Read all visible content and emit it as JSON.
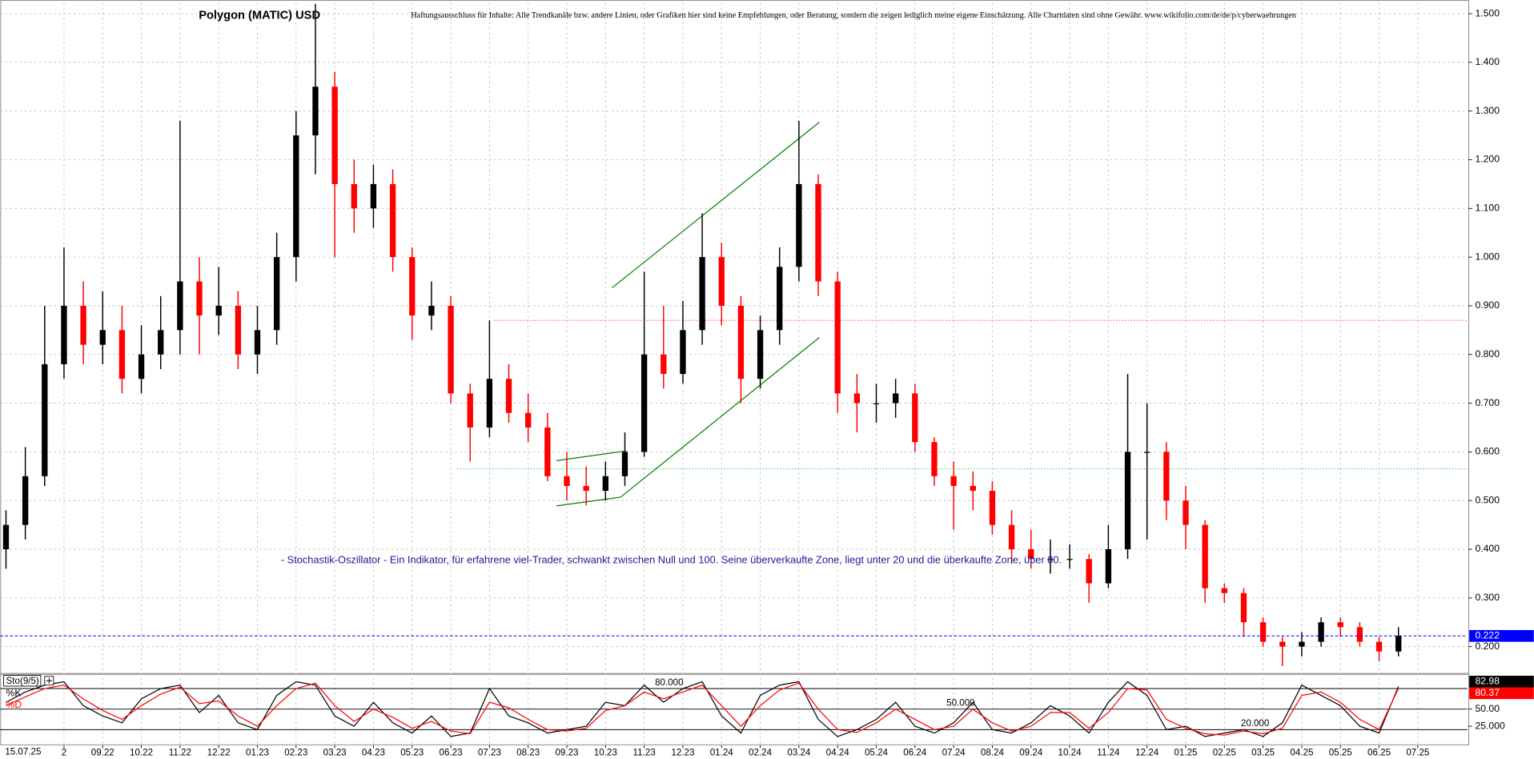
{
  "chart_data": {
    "type": "candlestick",
    "title": "Polygon (MATIC) USD",
    "disclaimer": "Haftungsausschluss für Inhalte: Alle Trendkanäle bzw. andere Linien, oder Grafiken hier sind keine Empfehlungen, oder Beratung, sondern die zeigen lediglich meine eigene Einschätzung. Alle Chartdaten sind ohne Gewähr. www.wikifolio.com/de/de/p/cyberwaehrungen",
    "annotation": "- Stochastik-Oszillator - Ein Indikator, für erfahrene viel-Trader, schwankt zwischen Null und 100. Seine überverkaufte Zone, liegt unter 20 und die überkaufte Zone, über 80.",
    "date_label": "15.07.25",
    "x": [
      -1.5,
      -1,
      -0.5,
      0,
      0.5,
      1,
      1.5,
      2,
      2.5,
      3,
      3.5,
      4,
      4.5,
      5,
      5.5,
      6,
      6.5,
      7,
      7.5,
      8,
      8.5,
      9,
      9.5,
      10,
      10.5,
      11,
      11.5,
      12,
      12.5,
      13,
      13.5,
      14,
      14.5,
      15,
      15.5,
      16,
      16.5,
      17,
      17.5,
      18,
      18.5,
      19,
      19.5,
      20,
      20.5,
      21,
      21.5,
      22,
      22.5,
      23,
      23.5,
      24,
      24.5,
      25,
      25.5,
      26,
      26.5,
      27,
      27.5,
      28,
      28.5,
      29,
      29.5,
      30,
      30.5,
      31,
      31.5,
      32,
      32.5,
      33,
      33.5,
      34,
      34.5
    ],
    "open": [
      0.4,
      0.45,
      0.55,
      0.78,
      0.9,
      0.82,
      0.85,
      0.75,
      0.8,
      0.85,
      0.95,
      0.88,
      0.9,
      0.8,
      0.85,
      1.0,
      1.25,
      1.35,
      1.15,
      1.1,
      1.15,
      1.0,
      0.88,
      0.9,
      0.72,
      0.65,
      0.75,
      0.68,
      0.65,
      0.55,
      0.53,
      0.52,
      0.55,
      0.6,
      0.8,
      0.76,
      0.85,
      1.0,
      0.9,
      0.75,
      0.85,
      0.98,
      1.15,
      0.95,
      0.72,
      0.7,
      0.7,
      0.72,
      0.62,
      0.55,
      0.53,
      0.52,
      0.45,
      0.4,
      0.38,
      0.38,
      0.38,
      0.33,
      0.4,
      0.6,
      0.6,
      0.5,
      0.45,
      0.32,
      0.31,
      0.25,
      0.21,
      0.2,
      0.21,
      0.25,
      0.24,
      0.21,
      0.19
    ],
    "high": [
      0.48,
      0.61,
      0.9,
      1.02,
      0.95,
      0.93,
      0.9,
      0.86,
      0.92,
      1.28,
      1.0,
      0.98,
      0.93,
      0.9,
      1.05,
      1.3,
      1.52,
      1.38,
      1.2,
      1.19,
      1.18,
      1.02,
      0.95,
      0.92,
      0.74,
      0.87,
      0.78,
      0.72,
      0.68,
      0.6,
      0.57,
      0.58,
      0.64,
      0.97,
      0.9,
      0.91,
      1.09,
      1.03,
      0.92,
      0.88,
      1.02,
      1.28,
      1.17,
      0.97,
      0.76,
      0.74,
      0.75,
      0.74,
      0.63,
      0.58,
      0.56,
      0.54,
      0.48,
      0.44,
      0.42,
      0.41,
      0.39,
      0.45,
      0.76,
      0.7,
      0.62,
      0.53,
      0.46,
      0.33,
      0.32,
      0.26,
      0.22,
      0.23,
      0.26,
      0.26,
      0.25,
      0.22,
      0.24
    ],
    "low": [
      0.36,
      0.42,
      0.53,
      0.75,
      0.78,
      0.78,
      0.72,
      0.72,
      0.77,
      0.8,
      0.8,
      0.84,
      0.77,
      0.76,
      0.82,
      0.95,
      1.17,
      1.0,
      1.05,
      1.06,
      0.97,
      0.83,
      0.85,
      0.7,
      0.58,
      0.63,
      0.66,
      0.62,
      0.54,
      0.5,
      0.49,
      0.5,
      0.53,
      0.59,
      0.73,
      0.74,
      0.82,
      0.86,
      0.7,
      0.73,
      0.82,
      0.95,
      0.92,
      0.68,
      0.64,
      0.66,
      0.67,
      0.6,
      0.53,
      0.44,
      0.48,
      0.43,
      0.37,
      0.36,
      0.35,
      0.36,
      0.29,
      0.32,
      0.38,
      0.42,
      0.46,
      0.4,
      0.29,
      0.29,
      0.22,
      0.2,
      0.16,
      0.18,
      0.2,
      0.22,
      0.2,
      0.17,
      0.18
    ],
    "close": [
      0.45,
      0.55,
      0.78,
      0.9,
      0.82,
      0.85,
      0.75,
      0.8,
      0.85,
      0.95,
      0.88,
      0.9,
      0.8,
      0.85,
      1.0,
      1.25,
      1.35,
      1.15,
      1.1,
      1.15,
      1.0,
      0.88,
      0.9,
      0.72,
      0.65,
      0.75,
      0.68,
      0.65,
      0.55,
      0.53,
      0.52,
      0.55,
      0.6,
      0.8,
      0.76,
      0.85,
      1.0,
      0.9,
      0.75,
      0.85,
      0.98,
      1.15,
      0.95,
      0.72,
      0.7,
      0.7,
      0.72,
      0.62,
      0.55,
      0.53,
      0.52,
      0.45,
      0.4,
      0.38,
      0.38,
      0.38,
      0.33,
      0.4,
      0.6,
      0.6,
      0.5,
      0.45,
      0.32,
      0.31,
      0.25,
      0.21,
      0.2,
      0.21,
      0.25,
      0.24,
      0.21,
      0.19,
      0.222
    ],
    "up_color": "#000000",
    "down_color": "#ff0000",
    "last_price_color": "#0000ff",
    "grid": true,
    "xlim": [
      -1.65,
      36.28
    ],
    "xticks": [
      {
        "value": 0,
        "label": "2"
      },
      {
        "value": 1,
        "label": "09.22"
      },
      {
        "value": 2,
        "label": "10.22"
      },
      {
        "value": 3,
        "label": "11.22"
      },
      {
        "value": 4,
        "label": "12.22"
      },
      {
        "value": 5,
        "label": "01.23"
      },
      {
        "value": 6,
        "label": "02.23"
      },
      {
        "value": 7,
        "label": "03.23"
      },
      {
        "value": 8,
        "label": "04.23"
      },
      {
        "value": 9,
        "label": "05.23"
      },
      {
        "value": 10,
        "label": "06.23"
      },
      {
        "value": 11,
        "label": "07.23"
      },
      {
        "value": 12,
        "label": "08.23"
      },
      {
        "value": 13,
        "label": "09.23"
      },
      {
        "value": 14,
        "label": "10.23"
      },
      {
        "value": 15,
        "label": "11.23"
      },
      {
        "value": 16,
        "label": "12.23"
      },
      {
        "value": 17,
        "label": "01.24"
      },
      {
        "value": 18,
        "label": "02.24"
      },
      {
        "value": 19,
        "label": "03.24"
      },
      {
        "value": 20,
        "label": "04.24"
      },
      {
        "value": 21,
        "label": "05.24"
      },
      {
        "value": 22,
        "label": "06.24"
      },
      {
        "value": 23,
        "label": "07.24"
      },
      {
        "value": 24,
        "label": "08.24"
      },
      {
        "value": 25,
        "label": "09.24"
      },
      {
        "value": 26,
        "label": "10.24"
      },
      {
        "value": 27,
        "label": "11.24"
      },
      {
        "value": 28,
        "label": "12.24"
      },
      {
        "value": 29,
        "label": "01.25"
      },
      {
        "value": 30,
        "label": "02.25"
      },
      {
        "value": 31,
        "label": "03.25"
      },
      {
        "value": 32,
        "label": "04.25"
      },
      {
        "value": 33,
        "label": "05.25"
      },
      {
        "value": 34,
        "label": "06.25"
      },
      {
        "value": 35,
        "label": "07.25"
      }
    ],
    "ylim": [
      0.146,
      1.522
    ],
    "yticks": [
      {
        "value": 0.2,
        "label": "0.200"
      },
      {
        "value": 0.3,
        "label": "0.300"
      },
      {
        "value": 0.4,
        "label": "0.400"
      },
      {
        "value": 0.5,
        "label": "0.500"
      },
      {
        "value": 0.6,
        "label": "0.600"
      },
      {
        "value": 0.7,
        "label": "0.700"
      },
      {
        "value": 0.8,
        "label": "0.800"
      },
      {
        "value": 0.9,
        "label": "0.900"
      },
      {
        "value": 1.0,
        "label": "1.000"
      },
      {
        "value": 1.1,
        "label": "1.100"
      },
      {
        "value": 1.2,
        "label": "1.200"
      },
      {
        "value": 1.3,
        "label": "1.300"
      },
      {
        "value": 1.4,
        "label": "1.400"
      },
      {
        "value": 1.5,
        "label": "1.500"
      }
    ],
    "levels": [
      {
        "y": 0.87,
        "from": 11.12,
        "color": "#ff0000"
      },
      {
        "y": 0.565,
        "from": 10.17,
        "color": "#00cc00"
      }
    ],
    "trendlines": [
      {
        "x": [
          14.17,
          19.53
        ],
        "y": [
          0.937,
          1.277
        ],
        "color": "#008000"
      },
      {
        "x": [
          14.39,
          19.53
        ],
        "y": [
          0.507,
          0.835
        ],
        "color": "#008000"
      },
      {
        "x": [
          12.73,
          14.54
        ],
        "y": [
          0.582,
          0.602
        ],
        "color": "#008000"
      },
      {
        "x": [
          12.73,
          14.39
        ],
        "y": [
          0.489,
          0.507
        ],
        "color": "#008000"
      }
    ],
    "indicator": {
      "type": "line",
      "name": "Sto(9/5)",
      "ylim": [
        0,
        100
      ],
      "yticks": [
        {
          "value": 50,
          "label": "50.00"
        },
        {
          "value": 25,
          "label": "25.000"
        }
      ],
      "levels": [
        {
          "value": 80,
          "label": "80.000"
        },
        {
          "value": 50,
          "label": "50.000"
        },
        {
          "value": 20,
          "label": "20.000"
        }
      ],
      "series": [
        {
          "name": "%K",
          "color": "#000000",
          "values": [
            60,
            75,
            85,
            90,
            55,
            40,
            30,
            65,
            80,
            85,
            45,
            70,
            30,
            20,
            70,
            90,
            85,
            40,
            25,
            60,
            30,
            15,
            40,
            10,
            15,
            80,
            40,
            30,
            15,
            20,
            25,
            60,
            55,
            85,
            60,
            80,
            90,
            40,
            15,
            70,
            85,
            90,
            35,
            10,
            20,
            35,
            60,
            25,
            15,
            30,
            60,
            20,
            15,
            30,
            55,
            40,
            15,
            60,
            90,
            70,
            20,
            25,
            10,
            15,
            20,
            10,
            30,
            85,
            70,
            55,
            25,
            15,
            82.98
          ]
        },
        {
          "name": "%D",
          "color": "#ff0000",
          "values": [
            55,
            68,
            80,
            85,
            65,
            48,
            35,
            55,
            72,
            82,
            58,
            62,
            40,
            25,
            55,
            80,
            88,
            55,
            32,
            50,
            38,
            22,
            32,
            18,
            14,
            60,
            52,
            35,
            20,
            18,
            22,
            48,
            55,
            75,
            65,
            75,
            85,
            55,
            25,
            55,
            78,
            88,
            50,
            20,
            16,
            30,
            50,
            35,
            20,
            25,
            50,
            30,
            18,
            25,
            45,
            45,
            22,
            45,
            80,
            78,
            35,
            22,
            14,
            12,
            18,
            14,
            22,
            70,
            75,
            60,
            35,
            20,
            80.37
          ]
        }
      ]
    }
  }
}
